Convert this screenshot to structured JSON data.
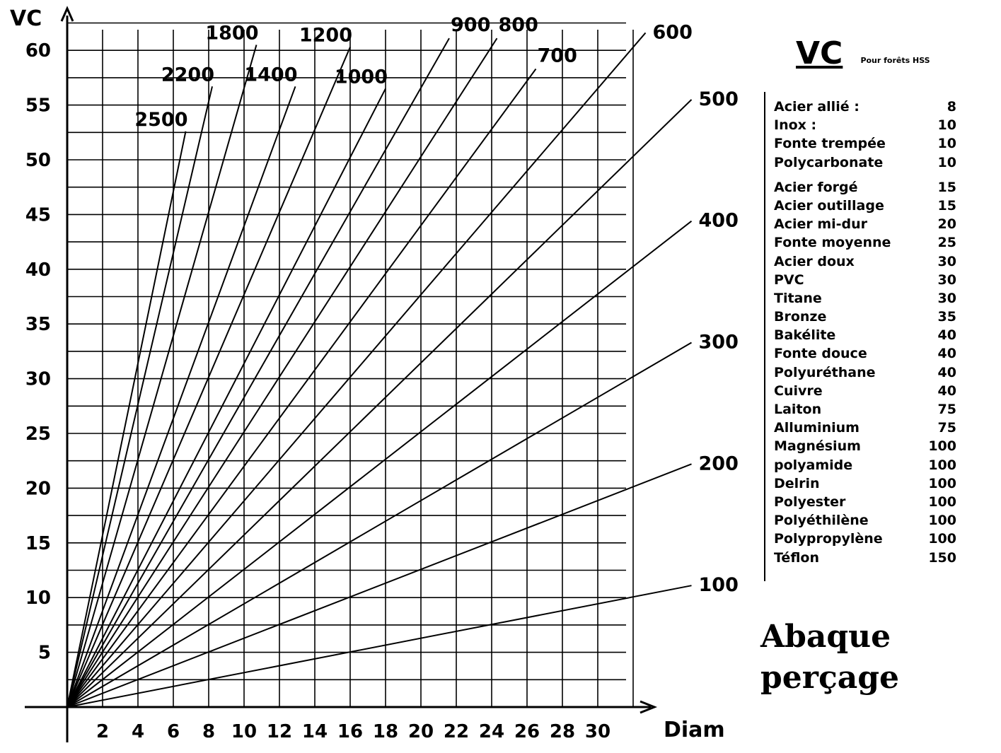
{
  "chart_data": {
    "type": "line",
    "title": "",
    "xlabel": "Diam",
    "ylabel": "VC",
    "xlim": [
      0,
      30
    ],
    "ylim": [
      0,
      60
    ],
    "x_ticks": [
      2,
      4,
      6,
      8,
      10,
      12,
      14,
      16,
      18,
      20,
      22,
      24,
      26,
      28,
      30
    ],
    "y_ticks": [
      5,
      10,
      15,
      20,
      25,
      30,
      35,
      40,
      45,
      50,
      55,
      60
    ],
    "grid": true,
    "formula_note": "",
    "series": [
      {
        "name": "100",
        "x": [
          0,
          35.3
        ],
        "y": [
          0,
          11.1
        ]
      },
      {
        "name": "200",
        "x": [
          0,
          35.3
        ],
        "y": [
          0,
          22.2
        ]
      },
      {
        "name": "300",
        "x": [
          0,
          35.3
        ],
        "y": [
          0,
          33.3
        ]
      },
      {
        "name": "400",
        "x": [
          0,
          35.3
        ],
        "y": [
          0,
          44.4
        ]
      },
      {
        "name": "500",
        "x": [
          0,
          35.3
        ],
        "y": [
          0,
          55.5
        ]
      },
      {
        "name": "600",
        "x": [
          0,
          32.7
        ],
        "y": [
          0,
          61.6
        ]
      },
      {
        "name": "700",
        "x": [
          0,
          26.5
        ],
        "y": [
          0,
          58.3
        ]
      },
      {
        "name": "800",
        "x": [
          0,
          24.3
        ],
        "y": [
          0,
          61.1
        ]
      },
      {
        "name": "900",
        "x": [
          0,
          21.6
        ],
        "y": [
          0,
          61.1
        ]
      },
      {
        "name": "1000",
        "x": [
          0,
          18.0
        ],
        "y": [
          0,
          56.5
        ]
      },
      {
        "name": "1200",
        "x": [
          0,
          16.0
        ],
        "y": [
          0,
          60.3
        ]
      },
      {
        "name": "1400",
        "x": [
          0,
          12.9
        ],
        "y": [
          0,
          56.7
        ]
      },
      {
        "name": "1800",
        "x": [
          0,
          10.7
        ],
        "y": [
          0,
          60.5
        ]
      },
      {
        "name": "2200",
        "x": [
          0,
          8.2
        ],
        "y": [
          0,
          56.7
        ]
      },
      {
        "name": "2500",
        "x": [
          0,
          6.7
        ],
        "y": [
          0,
          52.6
        ]
      }
    ]
  },
  "legend": {
    "title": "VC",
    "subtitle": "Pour forêts   HSS",
    "materials": [
      {
        "name": "Acier allié :",
        "vc": "8"
      },
      {
        "name": "Inox :",
        "vc": "10"
      },
      {
        "name": "Fonte trempée",
        "vc": "10"
      },
      {
        "name": "Polycarbonate",
        "vc": "10"
      },
      {
        "name": "Acier forgé",
        "vc": "15"
      },
      {
        "name": "Acier outillage",
        "vc": "15"
      },
      {
        "name": "Acier mi-dur",
        "vc": "20"
      },
      {
        "name": "Fonte moyenne",
        "vc": "25"
      },
      {
        "name": "Acier doux",
        "vc": "30"
      },
      {
        "name": "PVC",
        "vc": "30"
      },
      {
        "name": "Titane",
        "vc": "30"
      },
      {
        "name": "Bronze",
        "vc": "35"
      },
      {
        "name": "Bakélite",
        "vc": "40"
      },
      {
        "name": "Fonte douce",
        "vc": "40"
      },
      {
        "name": "Polyuréthane",
        "vc": "40"
      },
      {
        "name": "Cuivre",
        "vc": "40"
      },
      {
        "name": "Laiton",
        "vc": "75"
      },
      {
        "name": "Alluminium",
        "vc": "75"
      },
      {
        "name": "Magnésium",
        "vc": "100"
      },
      {
        "name": "polyamide",
        "vc": "100"
      },
      {
        "name": "Delrin",
        "vc": "100"
      },
      {
        "name": "Polyester",
        "vc": "100"
      },
      {
        "name": "Polyéthilène",
        "vc": "100"
      },
      {
        "name": "Polypropylène",
        "vc": "100"
      },
      {
        "name": "Téflon",
        "vc": "150"
      }
    ]
  },
  "big_title": {
    "line1": "Abaque",
    "line2": "perçage"
  }
}
